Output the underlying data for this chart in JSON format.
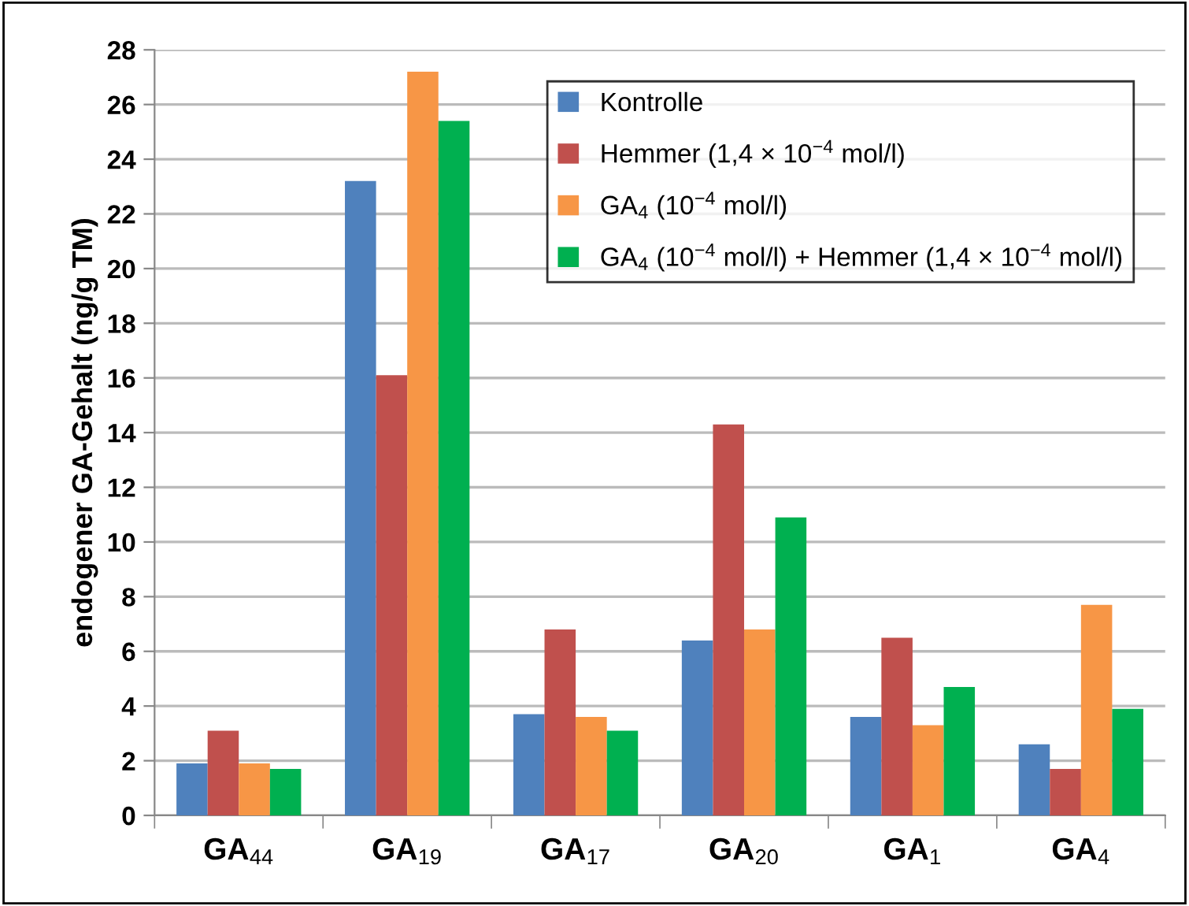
{
  "chart_data": {
    "type": "bar",
    "ylabel": "endogener GA-Gehalt (ng/g TM)",
    "categories": [
      "GA$_{44}$",
      "GA$_{19}$",
      "GA$_{17}$",
      "GA$_{20}$",
      "GA$_{1}$",
      "GA$_{4}$"
    ],
    "series": [
      {
        "name": "Kontrolle",
        "color": "#4f81bd",
        "values": [
          1.9,
          23.2,
          3.7,
          6.4,
          3.6,
          2.6
        ]
      },
      {
        "name": "Hemmer (1,4 × 10$^{−4}$ mol/l)",
        "color": "#c0504d",
        "values": [
          3.1,
          16.1,
          6.8,
          14.3,
          6.5,
          1.7
        ]
      },
      {
        "name": "GA$_{4}$ (10$^{−4}$ mol/l)",
        "color": "#f79646",
        "values": [
          1.9,
          27.2,
          3.6,
          6.8,
          3.3,
          7.7
        ]
      },
      {
        "name": "GA$_{4}$ (10$^{−4}$ mol/l) + Hemmer (1,4 × 10$^{−4}$ mol/l)",
        "color": "#00b050",
        "values": [
          1.7,
          25.4,
          3.1,
          10.9,
          4.7,
          3.9
        ]
      }
    ],
    "ylim": [
      0,
      28
    ],
    "yticks": [
      0,
      2,
      4,
      6,
      8,
      10,
      12,
      14,
      16,
      18,
      20,
      22,
      24,
      26,
      28
    ],
    "grid": "y",
    "legend": "top right"
  }
}
